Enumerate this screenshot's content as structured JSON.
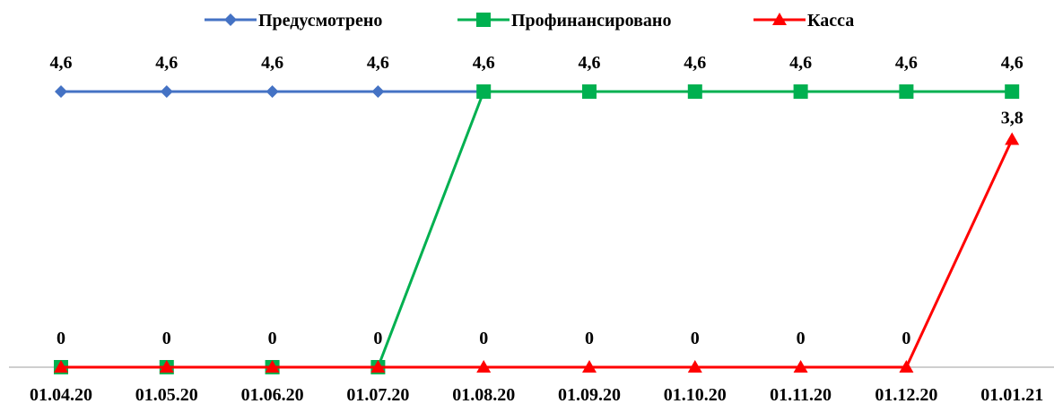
{
  "chart_data": {
    "type": "line",
    "categories": [
      "01.04.20",
      "01.05.20",
      "01.06.20",
      "01.07.20",
      "01.08.20",
      "01.09.20",
      "01.10.20",
      "01.11.20",
      "01.12.20",
      "01.01.21"
    ],
    "series": [
      {
        "name": "Предусмотрено",
        "color": "#4472C4",
        "marker": "diamond",
        "values": [
          4.6,
          4.6,
          4.6,
          4.6,
          4.6,
          4.6,
          4.6,
          4.6,
          4.6,
          4.6
        ],
        "labels": [
          "4,6",
          "4,6",
          "4,6",
          "4,6",
          "4,6",
          "4,6",
          "4,6",
          "4,6",
          "4,6",
          "4,6"
        ]
      },
      {
        "name": "Профинансировано",
        "color": "#00B050",
        "marker": "square",
        "values": [
          0,
          0,
          0,
          0,
          4.6,
          4.6,
          4.6,
          4.6,
          4.6,
          4.6
        ],
        "labels": []
      },
      {
        "name": "Касса",
        "color": "#FF0000",
        "marker": "triangle",
        "values": [
          0,
          0,
          0,
          0,
          0,
          0,
          0,
          0,
          0,
          3.8
        ],
        "labels": [
          "0",
          "0",
          "0",
          "0",
          "0",
          "0",
          "0",
          "0",
          "0",
          "3,8"
        ]
      }
    ],
    "ylim": [
      0,
      4.6
    ],
    "grid": false,
    "legend": "top"
  }
}
